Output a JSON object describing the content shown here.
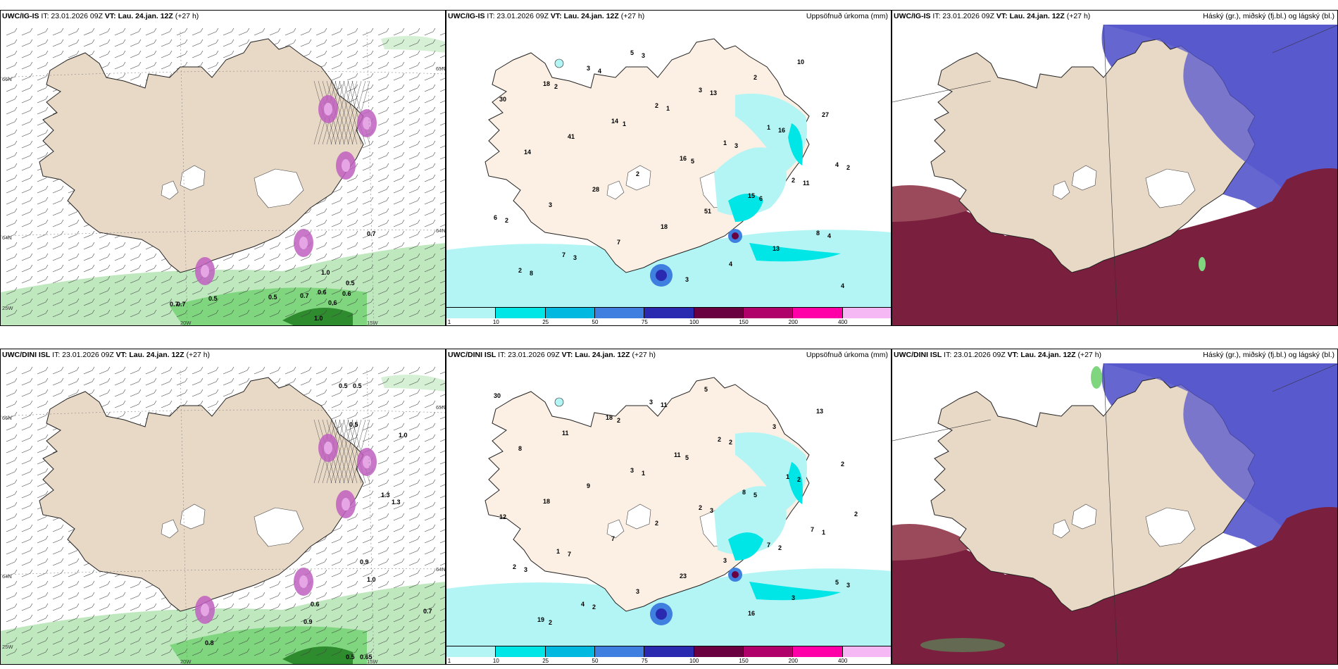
{
  "panels": [
    {
      "id": "p1",
      "model": "UWC/IG-IS",
      "it": "IT: 23.01.2026 09Z",
      "vt_label": "VT:",
      "vt": "Lau. 24.jan. 12Z",
      "lead": "(+27 h)",
      "right_title": "",
      "kind": "wind"
    },
    {
      "id": "p2",
      "model": "UWC/IG-IS",
      "it": "IT: 23.01.2026 09Z",
      "vt_label": "VT:",
      "vt": "Lau. 24.jan. 12Z",
      "lead": "(+27 h)",
      "right_title": "Uppsöfnuð úrkoma (mm)",
      "kind": "precip"
    },
    {
      "id": "p3",
      "model": "UWC/IG-IS",
      "it": "IT: 23.01.2026 09Z",
      "vt_label": "VT:",
      "vt": "Lau. 24.jan. 12Z",
      "lead": "(+27 h)",
      "right_title": "Háský (gr.), miðský (fj.bl.) og lágský (bl.)",
      "kind": "cloud"
    },
    {
      "id": "p4",
      "model": "UWC/DINI ISL",
      "it": "IT: 23.01.2026 09Z",
      "vt_label": "VT:",
      "vt": "Lau. 24.jan. 12Z",
      "lead": "(+27 h)",
      "right_title": "",
      "kind": "wind"
    },
    {
      "id": "p5",
      "model": "UWC/DINI ISL",
      "it": "IT: 23.01.2026 09Z",
      "vt_label": "VT:",
      "vt": "Lau. 24.jan. 12Z",
      "lead": "(+27 h)",
      "right_title": "Uppsöfnuð úrkoma (mm)",
      "kind": "precip"
    },
    {
      "id": "p6",
      "model": "UWC/DINI ISL",
      "it": "IT: 23.01.2026 09Z",
      "vt_label": "VT:",
      "vt": "Lau. 24.jan. 12Z",
      "lead": "(+27 h)",
      "right_title": "Háský (gr.), miðský (fj.bl.) og lágský (bl.)",
      "kind": "cloud"
    }
  ],
  "axis_labels": {
    "lat_top": "66N",
    "lat_mid": "64N",
    "lat_bottom": "25W",
    "lon_left": "20W",
    "lon_right": "15W",
    "lat_right_top": "65N",
    "lat_right_mid": "64N"
  },
  "colorbar": {
    "ticks": [
      "1",
      "10",
      "25",
      "50",
      "75",
      "100",
      "150",
      "200",
      "400"
    ],
    "colors": [
      "#b3f5f5",
      "#00e5e5",
      "#00b8e0",
      "#3f7fe0",
      "#2a2ab0",
      "#6b0040",
      "#b0006a",
      "#ff00a8",
      "#f5b8f5"
    ]
  },
  "precip_labels_top": [
    "2",
    "1",
    "5",
    "6",
    "4",
    "8",
    "4",
    "1",
    "3",
    "11",
    "2",
    "3",
    "3",
    "13",
    "16",
    "2",
    "3",
    "7",
    "3",
    "2",
    "27",
    "14",
    "28",
    "18",
    "4",
    "10",
    "30",
    "41",
    "2",
    "51",
    "13",
    "4",
    "18",
    "14",
    "16",
    "15",
    "8",
    "2",
    "3",
    "2",
    "1",
    "2",
    "6",
    "7",
    "5",
    "3",
    "1",
    "4"
  ],
  "precip_labels_bottom": [
    "1",
    "3",
    "2",
    "3",
    "2",
    "2",
    "5",
    "5",
    "1",
    "3",
    "2",
    "11",
    "2",
    "2",
    "12",
    "7",
    "3",
    "5",
    "3",
    "2",
    "18",
    "7",
    "23",
    "16",
    "13",
    "8",
    "9",
    "2",
    "3",
    "3",
    "30",
    "11",
    "3",
    "2",
    "7",
    "5",
    "19",
    "18",
    "11",
    "8",
    "7",
    "2",
    "4",
    "3",
    "2",
    "1",
    "2",
    "1"
  ],
  "wind_labels_top": [
    "0.7",
    "1.0",
    "0.5",
    "0.6",
    "0.6",
    "0.5",
    "0.5",
    "0.7",
    "0.6",
    "0.7",
    "1.0",
    "0.7"
  ],
  "wind_labels_bottom": [
    "0.5",
    "0.5",
    "0.5",
    "1.0",
    "1.3",
    "0.9",
    "1.0",
    "0.6",
    "0.8",
    "0.9",
    "0.7",
    "0.5",
    "0.65",
    "1.3"
  ],
  "colors": {
    "land": "#ece0d2",
    "glacier": "#ffffff",
    "sea": "#ffffff",
    "precip_light": "#b3f5f5",
    "precip_mid": "#00e5e5",
    "cloud_high": "#7a1f3d",
    "cloud_mid": "#5555cc",
    "cloud_low": "#6a3b8a",
    "green": "#7fd67f"
  }
}
